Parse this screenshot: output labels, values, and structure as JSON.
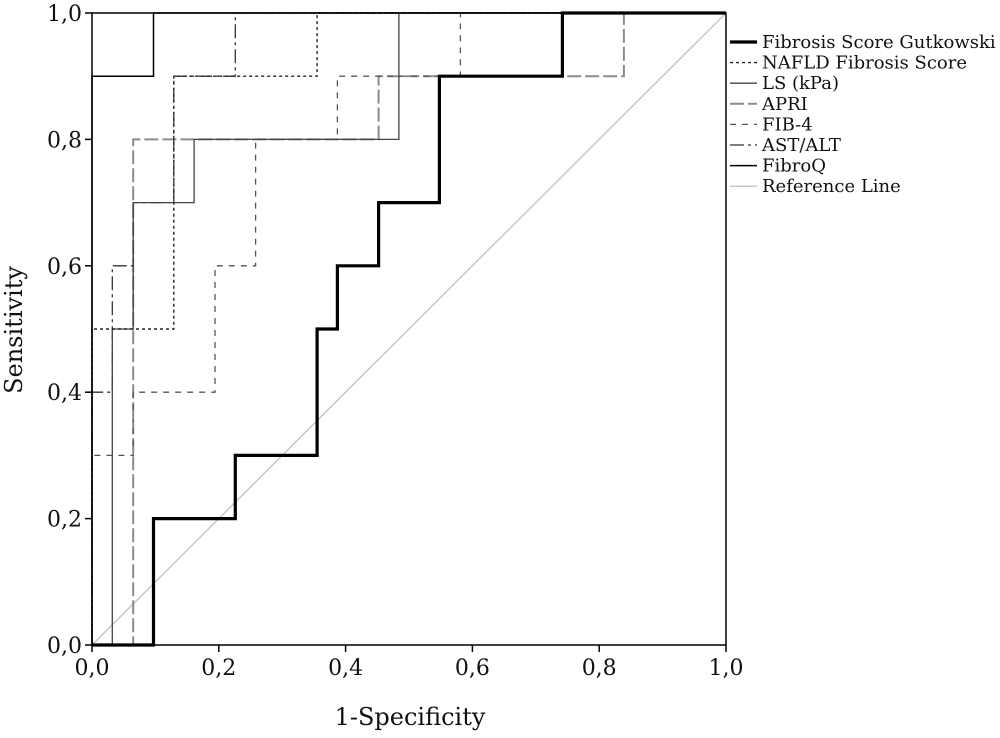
{
  "chart_data": {
    "type": "line",
    "title": "",
    "xlabel": "1-Specificity",
    "ylabel": "Sensitivity",
    "xlim": [
      0,
      1
    ],
    "ylim": [
      0,
      1
    ],
    "x_ticks": [
      "0,0",
      "0,2",
      "0,4",
      "0,6",
      "0,8",
      "1,0"
    ],
    "y_ticks": [
      "0,0",
      "0,2",
      "0,4",
      "0,6",
      "0,8",
      "1,0"
    ],
    "grid": false,
    "legend_position": "right",
    "series": [
      {
        "name": "Fibrosis Score Gutkowski",
        "color": "#000000",
        "style": "solid-thick",
        "points": [
          [
            0,
            0
          ],
          [
            0.097,
            0
          ],
          [
            0.097,
            0.2
          ],
          [
            0.226,
            0.2
          ],
          [
            0.226,
            0.3
          ],
          [
            0.355,
            0.3
          ],
          [
            0.355,
            0.5
          ],
          [
            0.387,
            0.5
          ],
          [
            0.387,
            0.6
          ],
          [
            0.452,
            0.6
          ],
          [
            0.452,
            0.7
          ],
          [
            0.548,
            0.7
          ],
          [
            0.548,
            0.9
          ],
          [
            0.742,
            0.9
          ],
          [
            0.742,
            1.0
          ],
          [
            1.0,
            1.0
          ]
        ]
      },
      {
        "name": "NAFLD Fibrosis Score",
        "color": "#222222",
        "style": "short-dash",
        "points": [
          [
            0,
            0
          ],
          [
            0,
            0.5
          ],
          [
            0.129,
            0.5
          ],
          [
            0.129,
            0.9
          ],
          [
            0.355,
            0.9
          ],
          [
            0.355,
            1.0
          ],
          [
            1.0,
            1.0
          ]
        ]
      },
      {
        "name": "LS (kPa)",
        "color": "#444444",
        "style": "solid-thin",
        "points": [
          [
            0,
            0
          ],
          [
            0.032,
            0
          ],
          [
            0.032,
            0.5
          ],
          [
            0.065,
            0.5
          ],
          [
            0.065,
            0.7
          ],
          [
            0.161,
            0.7
          ],
          [
            0.161,
            0.8
          ],
          [
            0.484,
            0.8
          ],
          [
            0.484,
            1.0
          ],
          [
            1.0,
            1.0
          ]
        ]
      },
      {
        "name": "APRI",
        "color": "#8c8c8c",
        "style": "long-dash",
        "points": [
          [
            0,
            0
          ],
          [
            0.065,
            0
          ],
          [
            0.065,
            0.8
          ],
          [
            0.452,
            0.8
          ],
          [
            0.452,
            0.9
          ],
          [
            0.839,
            0.9
          ],
          [
            0.839,
            1.0
          ],
          [
            1.0,
            1.0
          ]
        ]
      },
      {
        "name": "FIB-4",
        "color": "#555555",
        "style": "dot-dash",
        "points": [
          [
            0,
            0
          ],
          [
            0,
            0.3
          ],
          [
            0.065,
            0.3
          ],
          [
            0.065,
            0.4
          ],
          [
            0.194,
            0.4
          ],
          [
            0.194,
            0.6
          ],
          [
            0.258,
            0.6
          ],
          [
            0.258,
            0.8
          ],
          [
            0.387,
            0.8
          ],
          [
            0.387,
            0.9
          ],
          [
            0.581,
            0.9
          ],
          [
            0.581,
            1.0
          ],
          [
            1.0,
            1.0
          ]
        ]
      },
      {
        "name": "AST/ALT",
        "color": "#333333",
        "style": "dash-dot",
        "points": [
          [
            0,
            0
          ],
          [
            0,
            0.4
          ],
          [
            0.032,
            0.4
          ],
          [
            0.032,
            0.6
          ],
          [
            0.065,
            0.6
          ],
          [
            0.065,
            0.7
          ],
          [
            0.129,
            0.7
          ],
          [
            0.129,
            0.9
          ],
          [
            0.226,
            0.9
          ],
          [
            0.226,
            1.0
          ],
          [
            1.0,
            1.0
          ]
        ]
      },
      {
        "name": "FibroQ",
        "color": "#000000",
        "style": "solid",
        "points": [
          [
            0,
            0
          ],
          [
            0,
            0.9
          ],
          [
            0.097,
            0.9
          ],
          [
            0.097,
            1.0
          ],
          [
            1.0,
            1.0
          ]
        ]
      },
      {
        "name": "Reference Line",
        "color": "#c8c8c8",
        "style": "solid",
        "points": [
          [
            0,
            0
          ],
          [
            1,
            1
          ]
        ]
      }
    ]
  }
}
